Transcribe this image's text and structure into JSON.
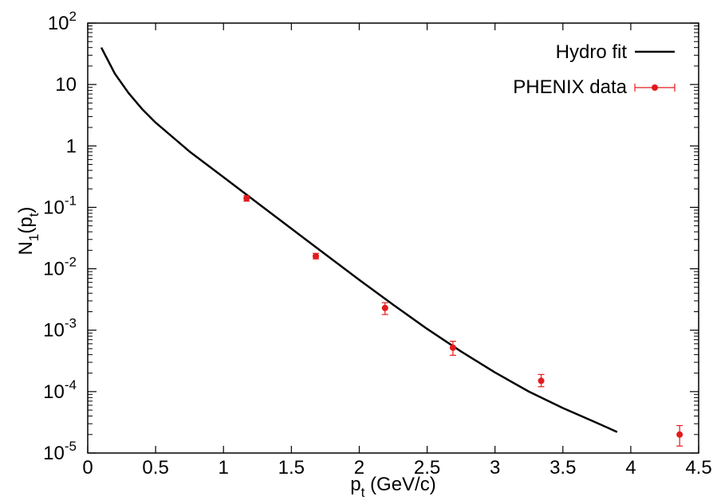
{
  "chart_data": {
    "type": "scatter",
    "xlabel": {
      "main": "p",
      "sub": "t",
      "rest": " (GeV/c)"
    },
    "ylabel": {
      "a": "N",
      "a_sub": "1",
      "b": "(p",
      "b_sub": "t",
      "c": ")"
    },
    "xlim": [
      0,
      4.5
    ],
    "ylim": [
      1e-05,
      100
    ],
    "yscale": "log",
    "grid": false,
    "legend_position": "top-right",
    "x_ticks": [
      {
        "value": 0,
        "label": "0"
      },
      {
        "value": 0.5,
        "label": "0.5"
      },
      {
        "value": 1,
        "label": "1"
      },
      {
        "value": 1.5,
        "label": "1.5"
      },
      {
        "value": 2,
        "label": "2"
      },
      {
        "value": 2.5,
        "label": "2.5"
      },
      {
        "value": 3,
        "label": "3"
      },
      {
        "value": 3.5,
        "label": "3.5"
      },
      {
        "value": 4,
        "label": "4"
      },
      {
        "value": 4.5,
        "label": "4.5"
      }
    ],
    "y_ticks": [
      {
        "value": 1e-05,
        "base": "10",
        "exp": "-5",
        "plain": ""
      },
      {
        "value": 0.0001,
        "base": "10",
        "exp": "-4",
        "plain": ""
      },
      {
        "value": 0.001,
        "base": "10",
        "exp": "-3",
        "plain": ""
      },
      {
        "value": 0.01,
        "base": "10",
        "exp": "-2",
        "plain": ""
      },
      {
        "value": 0.1,
        "base": "10",
        "exp": "-1",
        "plain": ""
      },
      {
        "value": 1,
        "base": "",
        "exp": "",
        "plain": "1"
      },
      {
        "value": 10,
        "base": "",
        "exp": "",
        "plain": "10"
      },
      {
        "value": 100,
        "base": "10",
        "exp": "2",
        "plain": ""
      }
    ],
    "series": [
      {
        "name": "Hydro fit",
        "kind": "line",
        "color": "#000000",
        "x": [
          0.1,
          0.2,
          0.3,
          0.4,
          0.5,
          0.75,
          1.0,
          1.25,
          1.5,
          1.75,
          2.0,
          2.25,
          2.5,
          2.75,
          3.0,
          3.25,
          3.5,
          3.75,
          3.9
        ],
        "y": [
          40,
          15,
          7.3,
          4.0,
          2.4,
          0.81,
          0.31,
          0.118,
          0.045,
          0.0172,
          0.0066,
          0.0026,
          0.00105,
          0.00045,
          0.000205,
          0.0001,
          5.4e-05,
          3.1e-05,
          2.2e-05
        ]
      },
      {
        "name": "PHENIX data",
        "kind": "points",
        "color": "#e31a1c",
        "points": [
          {
            "x": 1.17,
            "y": 0.14,
            "ylo": 0.126,
            "yhi": 0.155
          },
          {
            "x": 1.68,
            "y": 0.016,
            "ylo": 0.0145,
            "yhi": 0.0178
          },
          {
            "x": 2.19,
            "y": 0.0023,
            "ylo": 0.0018,
            "yhi": 0.0028
          },
          {
            "x": 2.69,
            "y": 0.00052,
            "ylo": 0.00039,
            "yhi": 0.00066
          },
          {
            "x": 3.34,
            "y": 0.00015,
            "ylo": 0.00012,
            "yhi": 0.00019
          },
          {
            "x": 4.36,
            "y": 2e-05,
            "ylo": 1.3e-05,
            "yhi": 2.8e-05
          }
        ]
      }
    ]
  }
}
